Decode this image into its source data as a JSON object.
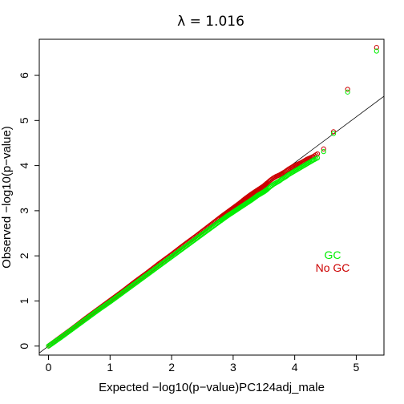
{
  "chart_data": {
    "type": "scatter",
    "title": "λ = 1.016",
    "xlabel": "Expected −log10(p−value)PC124adj_male",
    "ylabel": "Observed −log10(p−value)",
    "xlim": [
      -0.15,
      5.45
    ],
    "ylim": [
      -0.2,
      6.8
    ],
    "xticks": [
      "0",
      "1",
      "2",
      "3",
      "4",
      "5"
    ],
    "yticks": [
      "0",
      "1",
      "2",
      "3",
      "4",
      "5",
      "6"
    ],
    "grid": false,
    "reference_line": {
      "slope": 1.016,
      "intercept": 0
    },
    "legend": {
      "position": "right",
      "entries": [
        "GC",
        "No GC"
      ]
    },
    "colors": {
      "GC": "#00ee00",
      "No GC": "#cc0000",
      "reference_line": "#000000"
    },
    "series": [
      {
        "name": "No GC",
        "x": [
          0.0,
          0.2,
          0.4,
          0.6,
          0.8,
          1.0,
          1.2,
          1.4,
          1.6,
          1.8,
          2.0,
          2.2,
          2.4,
          2.6,
          2.8,
          2.9,
          3.0,
          3.1,
          3.2,
          3.3,
          3.4,
          3.5,
          3.55,
          3.6,
          3.65,
          3.7,
          3.75,
          3.8,
          3.85,
          3.9,
          3.95,
          4.0,
          4.05,
          4.1,
          4.15,
          4.2,
          4.25,
          4.3,
          4.37,
          4.47,
          4.63,
          4.86,
          5.33
        ],
        "y": [
          0.0,
          0.2,
          0.4,
          0.61,
          0.81,
          1.01,
          1.21,
          1.42,
          1.62,
          1.83,
          2.03,
          2.24,
          2.44,
          2.65,
          2.86,
          2.96,
          3.06,
          3.16,
          3.27,
          3.37,
          3.46,
          3.55,
          3.61,
          3.67,
          3.72,
          3.76,
          3.79,
          3.83,
          3.87,
          3.92,
          3.96,
          4.0,
          4.03,
          4.06,
          4.1,
          4.14,
          4.17,
          4.2,
          4.26,
          4.37,
          4.75,
          5.69,
          6.62
        ]
      },
      {
        "name": "GC",
        "x": [
          0.0,
          0.2,
          0.4,
          0.6,
          0.8,
          1.0,
          1.2,
          1.4,
          1.6,
          1.8,
          2.0,
          2.2,
          2.4,
          2.6,
          2.8,
          2.9,
          3.0,
          3.1,
          3.2,
          3.3,
          3.4,
          3.5,
          3.55,
          3.6,
          3.65,
          3.7,
          3.75,
          3.8,
          3.85,
          3.9,
          3.95,
          4.0,
          4.05,
          4.1,
          4.15,
          4.2,
          4.25,
          4.3,
          4.37,
          4.47,
          4.63,
          4.86,
          5.33
        ],
        "y": [
          0.0,
          0.19,
          0.39,
          0.59,
          0.79,
          0.98,
          1.18,
          1.38,
          1.58,
          1.78,
          1.98,
          2.18,
          2.38,
          2.58,
          2.78,
          2.88,
          2.97,
          3.06,
          3.15,
          3.24,
          3.34,
          3.42,
          3.47,
          3.53,
          3.58,
          3.62,
          3.66,
          3.71,
          3.75,
          3.8,
          3.84,
          3.88,
          3.92,
          3.96,
          4.0,
          4.04,
          4.08,
          4.12,
          4.17,
          4.31,
          4.71,
          5.63,
          6.54
        ]
      }
    ]
  }
}
